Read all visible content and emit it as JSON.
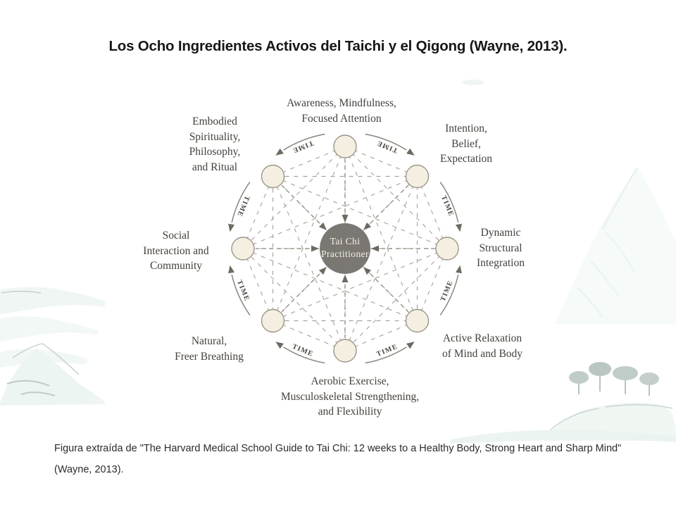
{
  "slide": {
    "title": "Los Ocho Ingredientes Activos del Taichi y el Qigong (Wayne, 2013).",
    "caption_line1": "Figura extraída de \"The Harvard Medical School Guide to Tai Chi: 12 weeks to a Healthy Body, Strong Heart and Sharp Mind\"",
    "caption_line2": "(Wayne, 2013)."
  },
  "diagram": {
    "center_label": "Tai Chi\nPractitioner",
    "time_label": "TIME",
    "ingredients": [
      {
        "id": "awareness",
        "label": "Awareness, Mindfulness,\nFocused Attention"
      },
      {
        "id": "intention",
        "label": "Intention,\nBelief,\nExpectation"
      },
      {
        "id": "dynamic",
        "label": "Dynamic\nStructural\nIntegration"
      },
      {
        "id": "relaxation",
        "label": "Active Relaxation\nof Mind and Body"
      },
      {
        "id": "aerobic",
        "label": "Aerobic Exercise,\nMusculoskeletal Strengthening,\nand Flexibility"
      },
      {
        "id": "breathing",
        "label": "Natural,\nFreer Breathing"
      },
      {
        "id": "social",
        "label": "Social\nInteraction and\nCommunity"
      },
      {
        "id": "spirituality",
        "label": "Embodied\nSpirituality,\nPhilosophy,\nand Ritual"
      }
    ],
    "colors": {
      "hub_fill": "#7b7873",
      "hub_text": "#f3efe3",
      "node_fill": "#f4efe0",
      "node_stroke": "#9a948a",
      "line": "#a9a399",
      "arc": "#8b867c",
      "arrowhead": "#6e6a61",
      "time_text": "#48443e",
      "label_text": "#45413b"
    }
  }
}
